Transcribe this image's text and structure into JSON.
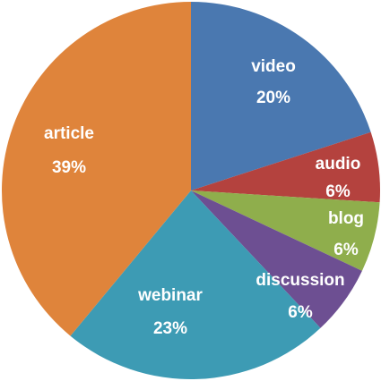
{
  "chart_data": {
    "type": "pie",
    "categories": [
      "video",
      "audio",
      "blog",
      "discussion",
      "webinar",
      "article"
    ],
    "values": [
      20,
      6,
      6,
      6,
      23,
      39
    ],
    "value_labels": [
      "20%",
      "6%",
      "6%",
      "6%",
      "23%",
      "39%"
    ],
    "colors": [
      "#4a78b0",
      "#b4423e",
      "#8fae4c",
      "#6d4f92",
      "#3d9bb4",
      "#df843b"
    ]
  }
}
